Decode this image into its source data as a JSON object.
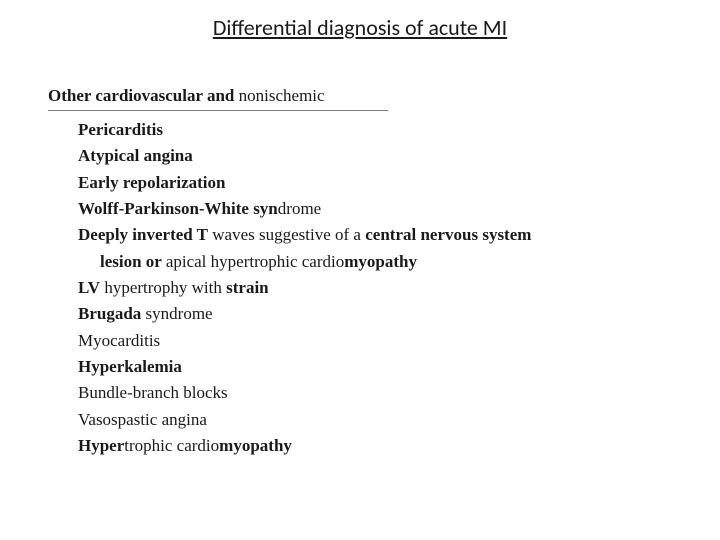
{
  "title": "Differential diagnosis of acute MI",
  "section": {
    "header_bold": "Other cardiovascular and",
    "header_rest": " nonischemic"
  },
  "items": [
    {
      "segments": [
        {
          "t": "Pericarditis",
          "b": true
        }
      ]
    },
    {
      "segments": [
        {
          "t": "Atypical angina",
          "b": true
        }
      ]
    },
    {
      "segments": [
        {
          "t": "Early repolarization",
          "b": true
        }
      ]
    },
    {
      "segments": [
        {
          "t": "Wolff-Parkinson-White syn",
          "b": true
        },
        {
          "t": "drome",
          "b": false
        }
      ]
    },
    {
      "segments": [
        {
          "t": "Deeply inverted T",
          "b": true
        },
        {
          "t": " waves suggestive of a ",
          "b": false
        },
        {
          "t": "central nervous system",
          "b": true
        }
      ],
      "cont_segments": [
        {
          "t": "lesion or ",
          "b": true
        },
        {
          "t": "apical hypertrophic cardio",
          "b": false
        },
        {
          "t": "myopathy",
          "b": true
        }
      ]
    },
    {
      "segments": [
        {
          "t": "LV",
          "b": true
        },
        {
          "t": " hypertrophy with ",
          "b": false
        },
        {
          "t": "strain",
          "b": true
        }
      ]
    },
    {
      "segments": [
        {
          "t": "Brugada",
          "b": true
        },
        {
          "t": " syndrome",
          "b": false
        }
      ]
    },
    {
      "segments": [
        {
          "t": "Myocarditis",
          "b": false
        }
      ]
    },
    {
      "segments": [
        {
          "t": "Hyperkalemia",
          "b": true
        }
      ]
    },
    {
      "segments": [
        {
          "t": "Bundle-branch blocks",
          "b": false
        }
      ]
    },
    {
      "segments": [
        {
          "t": "Vasospastic angina",
          "b": false
        }
      ]
    },
    {
      "segments": [
        {
          "t": "Hyper",
          "b": true
        },
        {
          "t": "trophic cardio",
          "b": false
        },
        {
          "t": "myopathy",
          "b": true
        }
      ]
    }
  ]
}
